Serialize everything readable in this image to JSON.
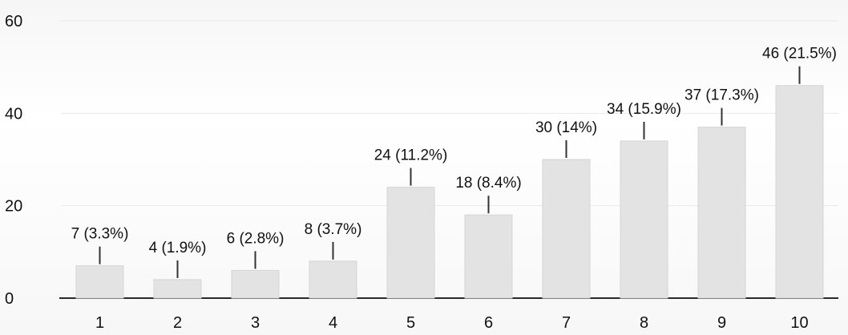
{
  "chart_data": {
    "type": "bar",
    "categories": [
      "1",
      "2",
      "3",
      "4",
      "5",
      "6",
      "7",
      "8",
      "9",
      "10"
    ],
    "values": [
      7,
      4,
      6,
      8,
      24,
      18,
      30,
      34,
      37,
      46
    ],
    "data_labels": [
      "7 (3.3%)",
      "4 (1.9%)",
      "6 (2.8%)",
      "8 (3.7%)",
      "24 (11.2%)",
      "18 (8.4%)",
      "30 (14%)",
      "34 (15.9%)",
      "37 (17.3%)",
      "46 (21.5%)"
    ],
    "title": "",
    "xlabel": "",
    "ylabel": "",
    "ylim": [
      0,
      60
    ],
    "yticks": [
      0,
      20,
      40,
      60
    ],
    "grid": true,
    "bar_color": "#e3e3e3",
    "axis_color": "#2a2a2a",
    "text_color": "#111111"
  }
}
